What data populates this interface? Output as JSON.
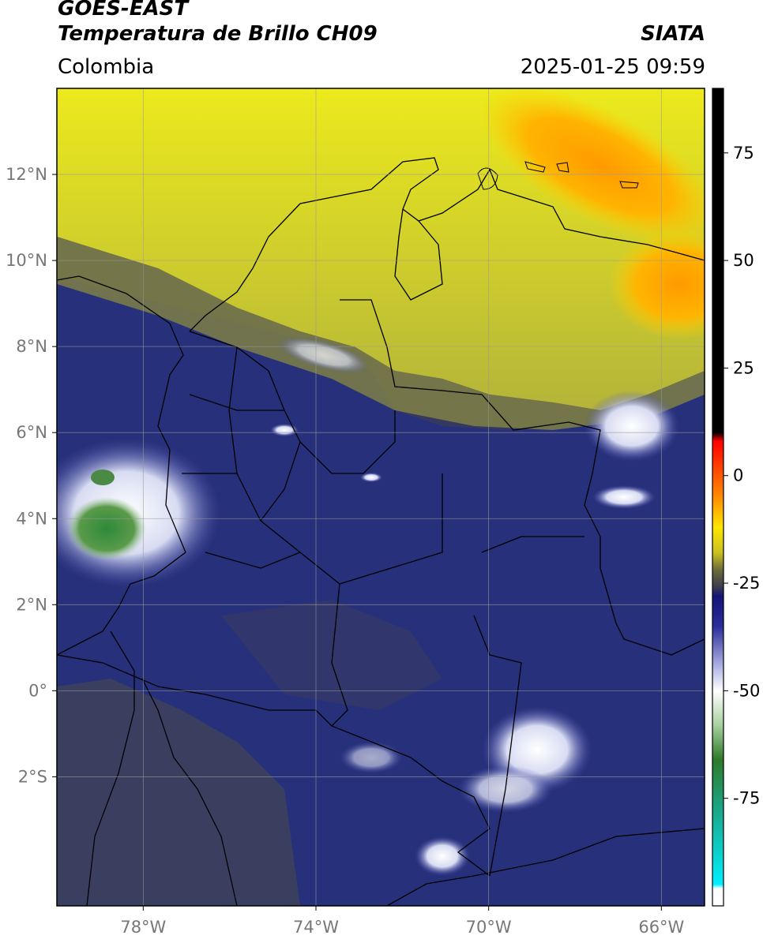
{
  "header": {
    "satellite": "GOES-EAST",
    "product": "Temperatura de Brillo CH09",
    "agency": "SIATA",
    "region": "Colombia",
    "timestamp": "2025-01-25 09:59"
  },
  "map": {
    "extent": {
      "lon_min": -80,
      "lon_max": -65,
      "lat_min": -5,
      "lat_max": 14
    },
    "lat_ticks": [
      {
        "value": 12,
        "label": "12°N"
      },
      {
        "value": 10,
        "label": "10°N"
      },
      {
        "value": 8,
        "label": "8°N"
      },
      {
        "value": 6,
        "label": "6°N"
      },
      {
        "value": 4,
        "label": "4°N"
      },
      {
        "value": 2,
        "label": "2°N"
      },
      {
        "value": 0,
        "label": "0°"
      },
      {
        "value": -2,
        "label": "2°S"
      }
    ],
    "lon_ticks": [
      {
        "value": -78,
        "label": "78°W"
      },
      {
        "value": -74,
        "label": "74°W"
      },
      {
        "value": -70,
        "label": "70°W"
      },
      {
        "value": -66,
        "label": "66°W"
      }
    ],
    "grid": true,
    "colors": {
      "background": "#27307a",
      "gridline": "#9a9a9a",
      "border": "#000000"
    }
  },
  "colorbar": {
    "range": [
      -100,
      90
    ],
    "ticks": [
      75,
      50,
      25,
      0,
      -25,
      -50,
      -75
    ],
    "stops": [
      {
        "value": 90,
        "color": "#000000"
      },
      {
        "value": 10,
        "color": "#000000"
      },
      {
        "value": 8,
        "color": "#ff0000"
      },
      {
        "value": -5,
        "color": "#ff8c00"
      },
      {
        "value": -12,
        "color": "#ffe600"
      },
      {
        "value": -18,
        "color": "#c8c020"
      },
      {
        "value": -22,
        "color": "#6b6a3a"
      },
      {
        "value": -26,
        "color": "#3a3a50"
      },
      {
        "value": -28,
        "color": "#141478"
      },
      {
        "value": -35,
        "color": "#2a2e9a"
      },
      {
        "value": -45,
        "color": "#b8bce8"
      },
      {
        "value": -50,
        "color": "#ffffff"
      },
      {
        "value": -58,
        "color": "#a8d0a0"
      },
      {
        "value": -66,
        "color": "#2e7a2a"
      },
      {
        "value": -78,
        "color": "#1aa88a"
      },
      {
        "value": -95,
        "color": "#00f0ff"
      },
      {
        "value": -96,
        "color": "#ffffff"
      },
      {
        "value": -100,
        "color": "#ffffff"
      }
    ]
  }
}
